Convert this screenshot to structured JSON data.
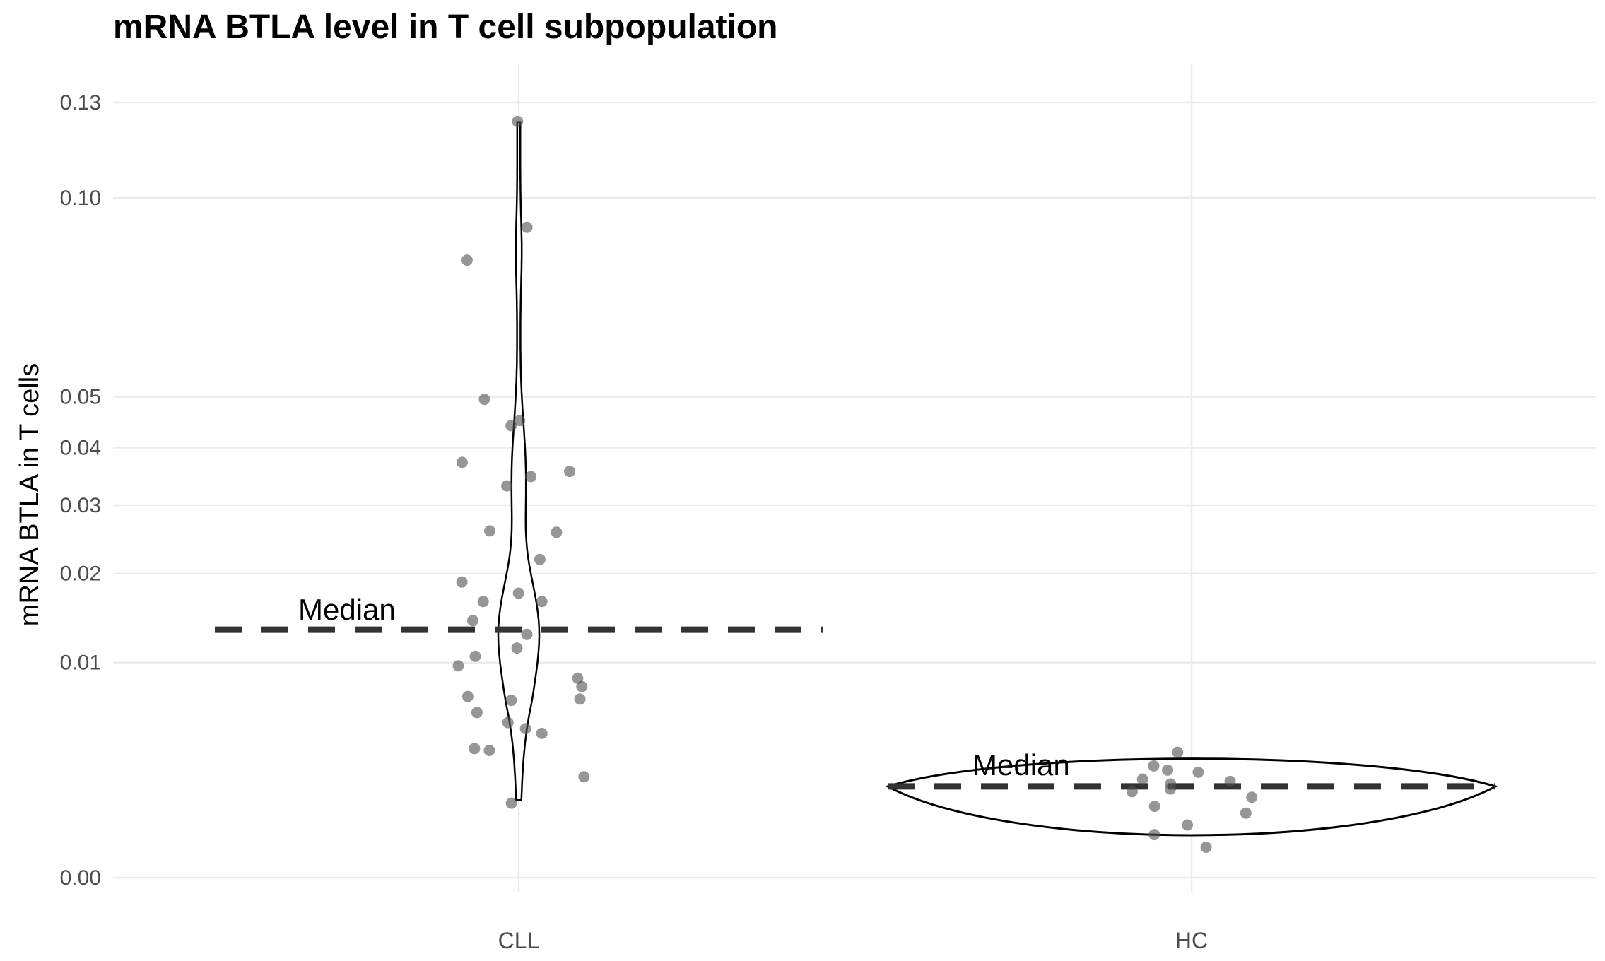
{
  "chart_data": {
    "type": "violin",
    "title": "mRNA BTLA level in T cell subpopulation",
    "xlabel": "",
    "ylabel": "mRNA BTLA in T cells",
    "y_axis_scale": "square-root",
    "ylim": [
      0,
      0.135
    ],
    "yticks": [
      0.0,
      0.01,
      0.02,
      0.03,
      0.04,
      0.05,
      0.1,
      0.13
    ],
    "ytick_labels": [
      "0.00",
      "0.01",
      "0.02",
      "0.03",
      "0.04",
      "0.05",
      "0.10",
      "0.13"
    ],
    "categories": [
      "CLL",
      "HC"
    ],
    "grid": true,
    "groups": [
      {
        "name": "CLL",
        "median": 0.0133,
        "median_label": "Median",
        "violin_range": [
          0.0013,
          0.1235
        ],
        "points": [
          0.1237,
          0.0915,
          0.0825,
          0.0495,
          0.0442,
          0.0452,
          0.0373,
          0.0357,
          0.0348,
          0.0332,
          0.026,
          0.0258,
          0.0219,
          0.0189,
          0.0175,
          0.0165,
          0.0165,
          0.0143,
          0.0128,
          0.0114,
          0.0106,
          0.0097,
          0.0086,
          0.0079,
          0.0071,
          0.0068,
          0.0069,
          0.0059,
          0.0052,
          0.0048,
          0.0045,
          0.0035,
          0.0036,
          0.0022,
          0.0012
        ]
      },
      {
        "name": "HC",
        "median": 0.0018,
        "median_label": "Median",
        "violin_range": [
          0.0002,
          0.0035
        ],
        "points": [
          0.0027,
          0.0024,
          0.0025,
          0.0021,
          0.002,
          0.0019,
          0.0017,
          0.0016,
          0.0014,
          0.0011,
          0.0009,
          0.0006,
          0.0004,
          0.0002,
          0.0034
        ]
      }
    ]
  }
}
